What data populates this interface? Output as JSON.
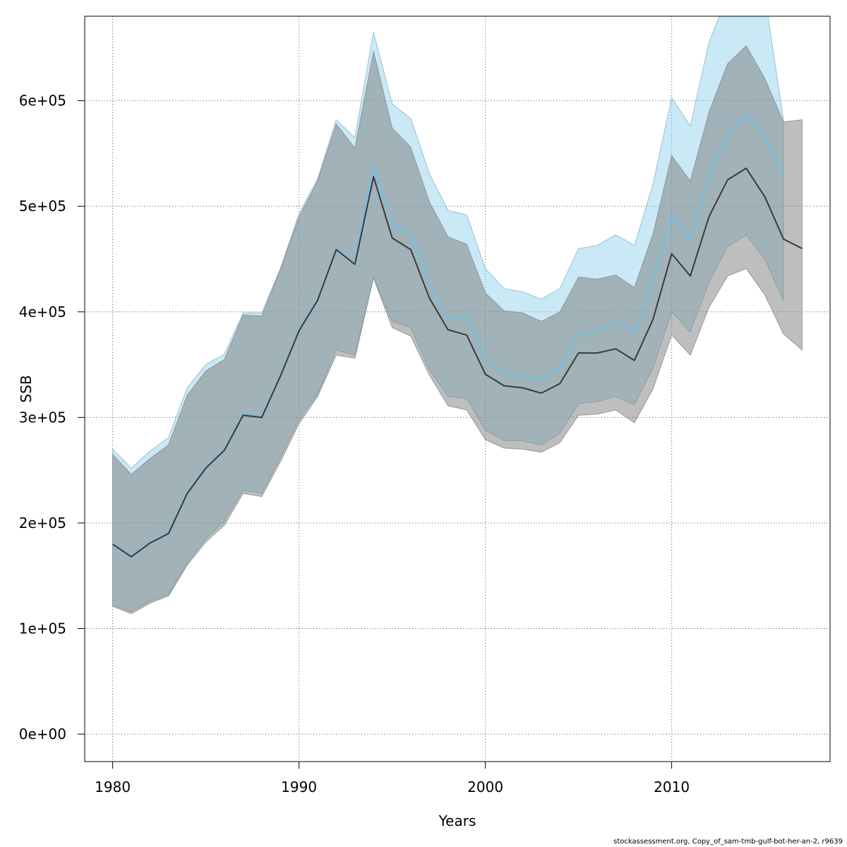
{
  "chart_data": {
    "type": "line",
    "xlabel": "Years",
    "ylabel": "SSB",
    "xlim": [
      1978.5,
      2018.5
    ],
    "ylim": [
      -26000,
      680000
    ],
    "xticks": [
      1980,
      1990,
      2000,
      2010
    ],
    "xtick_labels": [
      "1980",
      "1990",
      "2000",
      "2010"
    ],
    "yticks": [
      0,
      100000,
      200000,
      300000,
      400000,
      500000,
      600000
    ],
    "ytick_labels": [
      "0e+00",
      "1e+05",
      "2e+05",
      "3e+05",
      "4e+05",
      "5e+05",
      "6e+05"
    ],
    "grid": true,
    "series": [
      {
        "color": "#87CEEB",
        "band_fill": "rgba(135,206,235,0.45)",
        "band_stroke": "#8fb4c8",
        "line_color": "#6ec3ea",
        "x": [
          1980,
          1981,
          1982,
          1983,
          1984,
          1985,
          1986,
          1987,
          1988,
          1989,
          1990,
          1991,
          1992,
          1993,
          1994,
          1995,
          1996,
          1997,
          1998,
          1999,
          2000,
          2001,
          2002,
          2003,
          2004,
          2005,
          2006,
          2007,
          2008,
          2009,
          2010,
          2011,
          2012,
          2013,
          2014,
          2015,
          2016
        ],
        "values": [
          181000,
          169000,
          182000,
          191000,
          229000,
          253000,
          270000,
          303000,
          301000,
          340000,
          383000,
          412000,
          459000,
          451000,
          537000,
          483000,
          473000,
          427000,
          393000,
          395000,
          355000,
          342000,
          340000,
          335000,
          346000,
          379000,
          381000,
          391000,
          380000,
          430000,
          491000,
          468000,
          527000,
          568000,
          587000,
          566000,
          531000
        ],
        "lower": [
          122000,
          116000,
          126000,
          132000,
          162000,
          185000,
          202000,
          231000,
          228000,
          262000,
          298000,
          322000,
          364000,
          359000,
          432000,
          391000,
          385000,
          345000,
          320000,
          318000,
          288000,
          278000,
          278000,
          274000,
          285000,
          313000,
          315000,
          320000,
          312000,
          347000,
          400000,
          381000,
          428000,
          462000,
          473000,
          450000,
          411000
        ],
        "upper": [
          270000,
          252000,
          268000,
          281000,
          328000,
          350000,
          360000,
          399000,
          399000,
          441000,
          493000,
          526000,
          582000,
          565000,
          665000,
          597000,
          583000,
          531000,
          496000,
          492000,
          441000,
          422000,
          419000,
          412000,
          422000,
          460000,
          463000,
          473000,
          463000,
          521000,
          603000,
          576000,
          655000,
          700000,
          730000,
          700000,
          582000
        ]
      },
      {
        "color": "#3a3a3a",
        "band_fill": "rgba(120,120,120,0.48)",
        "band_stroke": "#8a8a8a",
        "line_color": "#3a3a3a",
        "x": [
          1980,
          1981,
          1982,
          1983,
          1984,
          1985,
          1986,
          1987,
          1988,
          1989,
          1990,
          1991,
          1992,
          1993,
          1994,
          1995,
          1996,
          1997,
          1998,
          1999,
          2000,
          2001,
          2002,
          2003,
          2004,
          2005,
          2006,
          2007,
          2008,
          2009,
          2010,
          2011,
          2012,
          2013,
          2014,
          2015,
          2016,
          2017
        ],
        "values": [
          180000,
          168000,
          181000,
          190000,
          228000,
          252000,
          269000,
          302000,
          300000,
          339000,
          382000,
          411000,
          459000,
          445000,
          528000,
          470000,
          459000,
          413000,
          383000,
          378000,
          341000,
          330000,
          328000,
          323000,
          332000,
          361000,
          361000,
          365000,
          354000,
          393000,
          455000,
          434000,
          490000,
          525000,
          536000,
          509000,
          469000,
          460000
        ],
        "lower": [
          121000,
          114000,
          124000,
          131000,
          160000,
          182000,
          198000,
          228000,
          225000,
          258000,
          294000,
          320000,
          359000,
          356000,
          432000,
          385000,
          377000,
          340000,
          311000,
          307000,
          279000,
          271000,
          270000,
          267000,
          276000,
          302000,
          303000,
          307000,
          295000,
          327000,
          378000,
          359000,
          404000,
          434000,
          441000,
          416000,
          379000,
          364000
        ],
        "upper": [
          265000,
          246000,
          261000,
          274000,
          321000,
          344000,
          355000,
          397000,
          396000,
          440000,
          490000,
          524000,
          578000,
          555000,
          647000,
          574000,
          556000,
          504000,
          471000,
          464000,
          418000,
          401000,
          399000,
          391000,
          400000,
          433000,
          431000,
          435000,
          423000,
          474000,
          548000,
          524000,
          589000,
          635000,
          652000,
          621000,
          580000,
          582000
        ]
      }
    ]
  },
  "footer": {
    "credit": "stockassessment.org, Copy_of_sam-tmb-gulf-bot-her-an-2, r9639"
  }
}
